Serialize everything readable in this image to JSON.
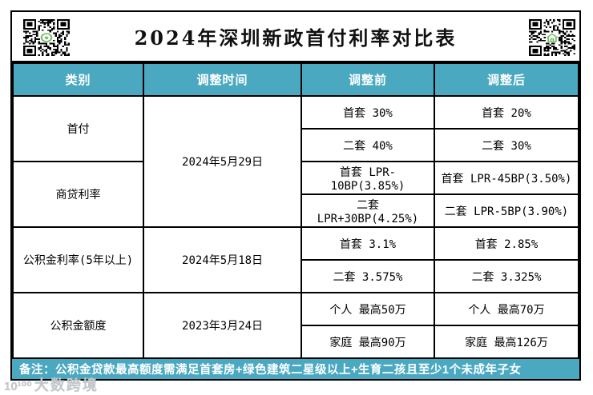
{
  "title": "2024年深圳新政首付利率对比表",
  "colors": {
    "accent_teal": "#4aa9c1",
    "border": "#000000",
    "qr_green": "#7bbf6a",
    "watermark_gray": "#c3c7ca"
  },
  "icons": {
    "qr_left": "qr-code",
    "qr_left_center": "green-circle-logo",
    "qr_right": "qr-code",
    "qr_right_center": "green-house-logo"
  },
  "chart_data": {
    "type": "table",
    "title": "2024年深圳新政首付利率对比表",
    "columns": [
      "类别",
      "调整时间",
      "调整前",
      "调整后"
    ],
    "rows": [
      [
        "首付",
        "2024年5月29日",
        "首套 30%",
        "首套 20%"
      ],
      [
        "首付",
        "2024年5月29日",
        "二套 40%",
        "二套 30%"
      ],
      [
        "商贷利率",
        "2024年5月29日",
        "首套 LPR-10BP(3.85%)",
        "首套 LPR-45BP(3.50%)"
      ],
      [
        "商贷利率",
        "2024年5月29日",
        "二套 LPR+30BP(4.25%)",
        "二套 LPR-5BP(3.90%)"
      ],
      [
        "公积金利率(5年以上)",
        "2024年5月18日",
        "首套 3.1%",
        "首套 2.85%"
      ],
      [
        "公积金利率(5年以上)",
        "2024年5月18日",
        "二套 3.575%",
        "二套 3.325%"
      ],
      [
        "公积金额度",
        "2023年3月24日",
        "个人 最高50万",
        "个人 最高70万"
      ],
      [
        "公积金额度",
        "2023年3月24日",
        "家庭 最高90万",
        "家庭 最高126万"
      ]
    ],
    "merged_cells": {
      "categories": [
        "首付",
        "商贷利率",
        "公积金利率(5年以上)",
        "公积金额度"
      ],
      "dates": [
        "2024年5月29日",
        "2024年5月18日",
        "2023年3月24日"
      ]
    },
    "note": "备注：公积金贷款最高额度需满足首套房+绿色建筑二星级以上+生育二孩且至少1个未成年子女",
    "layout_hints": {
      "header_bg": "#4aa9c1",
      "note_bg": "#4aa9c1",
      "grid": true
    }
  },
  "watermark": {
    "logo": "10¹⁰⁰",
    "text": "大数跨境"
  }
}
